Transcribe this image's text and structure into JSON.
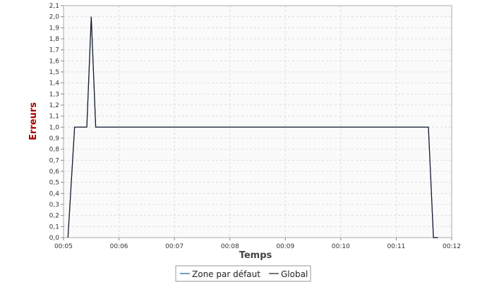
{
  "chart_data": {
    "type": "line",
    "xlabel": "Temps",
    "ylabel": "Erreurs",
    "xlim_minutes": [
      5.0,
      12.0
    ],
    "ylim": [
      0.0,
      2.1
    ],
    "x_ticks": [
      "00:05",
      "00:06",
      "00:07",
      "00:08",
      "00:09",
      "00:10",
      "00:11",
      "00:12"
    ],
    "y_ticks": [
      "0,0",
      "0,1",
      "0,2",
      "0,3",
      "0,4",
      "0,5",
      "0,6",
      "0,7",
      "0,8",
      "0,9",
      "1,0",
      "1,1",
      "1,2",
      "1,3",
      "1,4",
      "1,5",
      "1,6",
      "1,7",
      "1,8",
      "1,9",
      "2,0",
      "2,1"
    ],
    "grid": true,
    "legend_position": "bottom",
    "series": [
      {
        "name": "Zone par défaut",
        "color": "#1f5f8b",
        "x_minutes": [
          5.08,
          5.2,
          5.42,
          5.5,
          5.58,
          11.58,
          11.67,
          11.75
        ],
        "values": [
          0.0,
          1.0,
          1.0,
          2.0,
          1.0,
          1.0,
          0.0,
          0.0
        ]
      },
      {
        "name": "Global",
        "color": "#1a1a2e",
        "x_minutes": [
          5.08,
          5.2,
          5.42,
          5.5,
          5.58,
          11.58,
          11.67,
          11.75
        ],
        "values": [
          0.0,
          1.0,
          1.0,
          2.0,
          1.0,
          1.0,
          0.0,
          0.0
        ]
      }
    ],
    "colors": {
      "ylabel": "#a00000",
      "xlabel": "#444444"
    }
  }
}
